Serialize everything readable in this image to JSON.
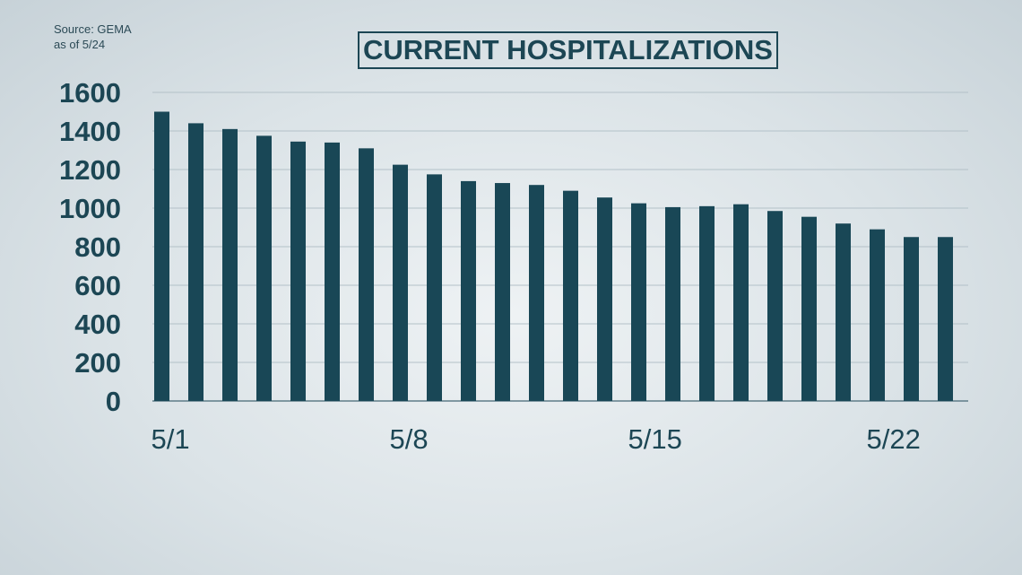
{
  "source": {
    "line1": "Source: GEMA",
    "line2": "as of 5/24"
  },
  "colors": {
    "bar": "#194756",
    "text": "#1c4654",
    "grid": "#b3c1c8",
    "axis": "#5f7d88"
  },
  "chart_data": {
    "type": "bar",
    "title": "CURRENT HOSPITALIZATIONS",
    "xlabel": "",
    "ylabel": "",
    "ylim": [
      0,
      1600
    ],
    "yticks": [
      0,
      200,
      400,
      600,
      800,
      1000,
      1200,
      1400,
      1600
    ],
    "grid": true,
    "categories": [
      "5/1",
      "5/2",
      "5/3",
      "5/4",
      "5/5",
      "5/6",
      "5/7",
      "5/8",
      "5/9",
      "5/10",
      "5/11",
      "5/12",
      "5/13",
      "5/14",
      "5/15",
      "5/16",
      "5/17",
      "5/18",
      "5/19",
      "5/20",
      "5/21",
      "5/22",
      "5/23",
      "5/24"
    ],
    "x_tick_labels": [
      "5/1",
      "5/8",
      "5/15",
      "5/22"
    ],
    "values": [
      1500,
      1440,
      1410,
      1375,
      1345,
      1340,
      1310,
      1225,
      1175,
      1140,
      1130,
      1120,
      1090,
      1055,
      1025,
      1005,
      1010,
      1020,
      985,
      955,
      920,
      890,
      850,
      850
    ]
  }
}
